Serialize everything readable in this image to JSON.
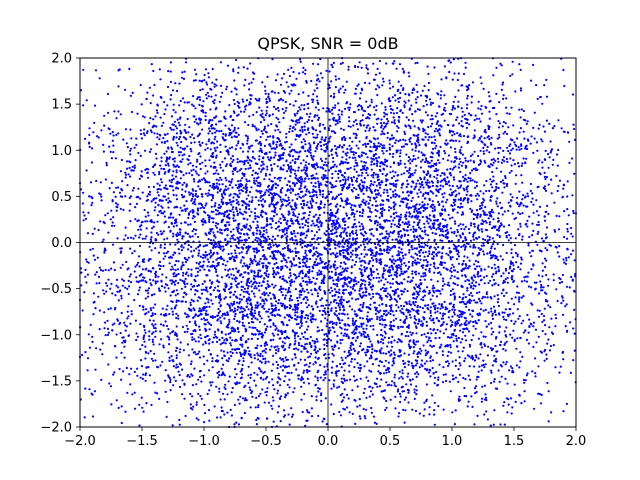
{
  "chart_data": {
    "type": "scatter",
    "title": "QPSK, SNR = 0dB",
    "xlabel": "",
    "ylabel": "",
    "xlim": [
      -2.0,
      2.0
    ],
    "ylim": [
      -2.0,
      2.0
    ],
    "x_ticks": [
      "−2.0",
      "−1.5",
      "−1.0",
      "−0.5",
      "0.0",
      "0.5",
      "1.0",
      "1.5",
      "2.0"
    ],
    "y_ticks": [
      "2.0",
      "1.5",
      "1.0",
      "0.5",
      "0.0",
      "−0.5",
      "−1.0",
      "−1.5",
      "−2.0"
    ],
    "grid": false,
    "reference_lines": {
      "x": 0.0,
      "y": 0.0
    },
    "marker_color": "#0000ff",
    "constellation_points": [
      [
        0.707,
        0.707
      ],
      [
        -0.707,
        0.707
      ],
      [
        -0.707,
        -0.707
      ],
      [
        0.707,
        -0.707
      ]
    ],
    "noise_std_per_component": 0.707,
    "approx_point_count": 9000
  }
}
